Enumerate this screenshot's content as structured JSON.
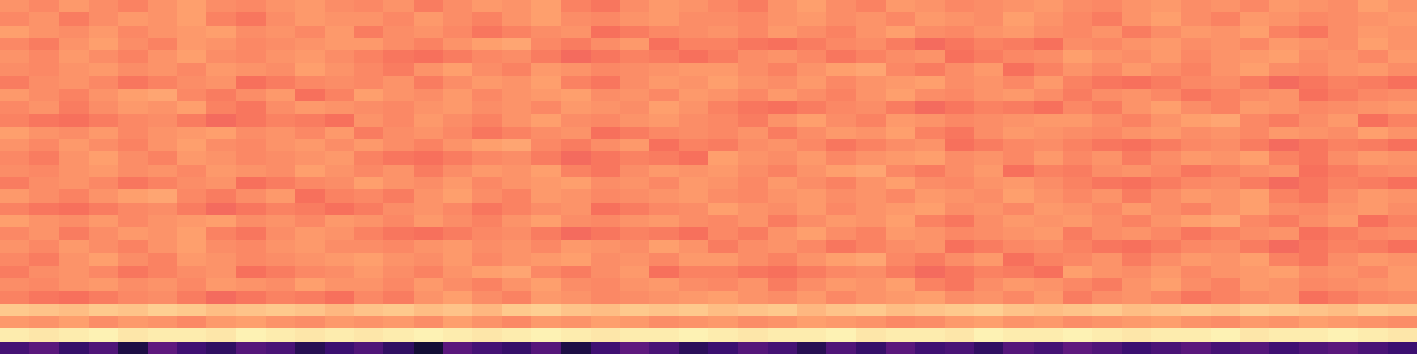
{
  "chart_data": {
    "type": "heatmap",
    "color": "magma",
    "tick_labels": false,
    "color_range": [
      -80,
      0
    ],
    "cells": [
      [
        -18,
        -20,
        -17,
        -19,
        -21,
        -18,
        -16,
        -19,
        -20,
        -18,
        -17,
        -19,
        -20,
        -18,
        -22,
        -19,
        -17,
        -18,
        -16,
        -21,
        -23,
        -19,
        -17,
        -18,
        -20,
        -22,
        -18,
        -16,
        -19,
        -21,
        -17,
        -18,
        -20,
        -19,
        -18,
        -17,
        -19,
        -20,
        -18,
        -17,
        -19,
        -18,
        -20,
        -17,
        -18,
        -19,
        -16,
        -18
      ],
      [
        -20,
        -18,
        -22,
        -19,
        -17,
        -18,
        -16,
        -21,
        -23,
        -19,
        -17,
        -18,
        -18,
        -20,
        -17,
        -19,
        -21,
        -18,
        -16,
        -19,
        -20,
        -18,
        -17,
        -19,
        -19,
        -20,
        -18,
        -17,
        -19,
        -18,
        -20,
        -17,
        -18,
        -19,
        -16,
        -18,
        -20,
        -22,
        -18,
        -16,
        -19,
        -21,
        -17,
        -18,
        -20,
        -19,
        -18,
        -17
      ],
      [
        -16,
        -18,
        -19,
        -17,
        -20,
        -18,
        -17,
        -16,
        -19,
        -18,
        -20,
        -17,
        -22,
        -19,
        -18,
        -20,
        -23,
        -21,
        -19,
        -18,
        -24,
        -22,
        -20,
        -19,
        -18,
        -20,
        -17,
        -19,
        -21,
        -18,
        -16,
        -19,
        -20,
        -18,
        -17,
        -19,
        -20,
        -18,
        -22,
        -19,
        -17,
        -18,
        -16,
        -21,
        -23,
        -19,
        -17,
        -18
      ],
      [
        -20,
        -22,
        -18,
        -16,
        -19,
        -21,
        -17,
        -18,
        -20,
        -19,
        -18,
        -17,
        -17,
        -19,
        -21,
        -18,
        -16,
        -15,
        -20,
        -22,
        -19,
        -17,
        -24,
        -21,
        -21,
        -23,
        -24,
        -22,
        -20,
        -19,
        -22,
        -25,
        -23,
        -21,
        -22,
        -24,
        -19,
        -20,
        -18,
        -17,
        -19,
        -18,
        -20,
        -17,
        -18,
        -19,
        -16,
        -18
      ],
      [
        -18,
        -20,
        -17,
        -19,
        -21,
        -18,
        -16,
        -19,
        -20,
        -18,
        -17,
        -19,
        -21,
        -23,
        -24,
        -22,
        -20,
        -19,
        -22,
        -25,
        -23,
        -21,
        -22,
        -24,
        -22,
        -19,
        -18,
        -20,
        -23,
        -21,
        -19,
        -18,
        -24,
        -22,
        -20,
        -19,
        -16,
        -18,
        -19,
        -17,
        -20,
        -18,
        -17,
        -16,
        -19,
        -18,
        -20,
        -17
      ],
      [
        -19,
        -20,
        -18,
        -17,
        -19,
        -18,
        -20,
        -17,
        -18,
        -19,
        -16,
        -18,
        -20,
        -22,
        -18,
        -16,
        -19,
        -21,
        -17,
        -18,
        -20,
        -19,
        -18,
        -17,
        -17,
        -19,
        -21,
        -18,
        -16,
        -15,
        -20,
        -22,
        -19,
        -17,
        -24,
        -21,
        -18,
        -20,
        -17,
        -19,
        -21,
        -18,
        -16,
        -19,
        -20,
        -18,
        -17,
        -19
      ],
      [
        -22,
        -19,
        -18,
        -20,
        -23,
        -21,
        -19,
        -18,
        -24,
        -22,
        -20,
        -19,
        -20,
        -18,
        -22,
        -19,
        -17,
        -18,
        -16,
        -21,
        -23,
        -19,
        -17,
        -18,
        -16,
        -18,
        -19,
        -17,
        -20,
        -18,
        -17,
        -16,
        -19,
        -18,
        -20,
        -17,
        -21,
        -23,
        -24,
        -22,
        -20,
        -19,
        -22,
        -25,
        -23,
        -21,
        -22,
        -24
      ],
      [
        -17,
        -19,
        -21,
        -18,
        -16,
        -15,
        -20,
        -22,
        -19,
        -17,
        -24,
        -21,
        -16,
        -18,
        -19,
        -17,
        -20,
        -18,
        -17,
        -16,
        -19,
        -18,
        -20,
        -17,
        -18,
        -20,
        -17,
        -19,
        -21,
        -18,
        -16,
        -19,
        -20,
        -18,
        -17,
        -19,
        -22,
        -19,
        -18,
        -20,
        -23,
        -21,
        -19,
        -18,
        -24,
        -22,
        -20,
        -19
      ],
      [
        -20,
        -18,
        -22,
        -19,
        -17,
        -18,
        -16,
        -21,
        -23,
        -19,
        -17,
        -18,
        -19,
        -20,
        -18,
        -17,
        -19,
        -18,
        -20,
        -17,
        -18,
        -19,
        -16,
        -18,
        -21,
        -23,
        -24,
        -22,
        -20,
        -19,
        -22,
        -25,
        -23,
        -21,
        -22,
        -24,
        -20,
        -22,
        -18,
        -16,
        -19,
        -21,
        -17,
        -18,
        -20,
        -19,
        -18,
        -17
      ],
      [
        -21,
        -23,
        -24,
        -22,
        -20,
        -19,
        -22,
        -25,
        -23,
        -21,
        -22,
        -24,
        -18,
        -20,
        -17,
        -19,
        -21,
        -18,
        -16,
        -19,
        -20,
        -18,
        -17,
        -19,
        -20,
        -22,
        -18,
        -16,
        -19,
        -21,
        -17,
        -18,
        -20,
        -19,
        -18,
        -17,
        -17,
        -19,
        -21,
        -18,
        -16,
        -15,
        -20,
        -22,
        -19,
        -17,
        -24,
        -21
      ],
      [
        -16,
        -18,
        -19,
        -17,
        -20,
        -18,
        -17,
        -16,
        -19,
        -18,
        -20,
        -17,
        -22,
        -19,
        -18,
        -20,
        -23,
        -21,
        -19,
        -18,
        -24,
        -22,
        -20,
        -19,
        -20,
        -18,
        -22,
        -19,
        -17,
        -18,
        -16,
        -21,
        -23,
        -19,
        -17,
        -18,
        -19,
        -20,
        -18,
        -17,
        -19,
        -18,
        -20,
        -17,
        -18,
        -19,
        -16,
        -18
      ],
      [
        -18,
        -20,
        -17,
        -19,
        -21,
        -18,
        -16,
        -19,
        -20,
        -18,
        -17,
        -19,
        -17,
        -19,
        -21,
        -18,
        -16,
        -15,
        -20,
        -22,
        -19,
        -17,
        -24,
        -21,
        -22,
        -19,
        -18,
        -20,
        -23,
        -21,
        -19,
        -18,
        -24,
        -22,
        -20,
        -19,
        -21,
        -23,
        -24,
        -22,
        -20,
        -19,
        -22,
        -25,
        -23,
        -21,
        -22,
        -24
      ],
      [
        -20,
        -22,
        -18,
        -16,
        -19,
        -21,
        -17,
        -18,
        -20,
        -19,
        -18,
        -17,
        -21,
        -23,
        -24,
        -22,
        -20,
        -19,
        -22,
        -25,
        -23,
        -21,
        -22,
        -24,
        -16,
        -18,
        -19,
        -17,
        -20,
        -18,
        -17,
        -16,
        -19,
        -18,
        -20,
        -17,
        -20,
        -18,
        -22,
        -19,
        -17,
        -18,
        -16,
        -21,
        -23,
        -19,
        -17,
        -18
      ],
      [
        -19,
        -20,
        -18,
        -17,
        -19,
        -18,
        -20,
        -17,
        -18,
        -19,
        -16,
        -18,
        -20,
        -18,
        -22,
        -19,
        -17,
        -18,
        -16,
        -21,
        -23,
        -19,
        -17,
        -18,
        -17,
        -19,
        -21,
        -18,
        -16,
        -15,
        -20,
        -22,
        -19,
        -17,
        -24,
        -21,
        -22,
        -19,
        -18,
        -20,
        -23,
        -21,
        -19,
        -18,
        -24,
        -22,
        -20,
        -19
      ],
      [
        -22,
        -19,
        -18,
        -20,
        -23,
        -21,
        -19,
        -18,
        -24,
        -22,
        -20,
        -19,
        -16,
        -18,
        -19,
        -17,
        -20,
        -18,
        -17,
        -16,
        -19,
        -18,
        -20,
        -17,
        -18,
        -20,
        -17,
        -19,
        -21,
        -18,
        -16,
        -19,
        -20,
        -18,
        -17,
        -19,
        -21,
        -23,
        -24,
        -22,
        -20,
        -19,
        -22,
        -25,
        -23,
        -21,
        -22,
        -24
      ],
      [
        -17,
        -19,
        -21,
        -18,
        -16,
        -15,
        -20,
        -22,
        -19,
        -17,
        -24,
        -21,
        -20,
        -22,
        -18,
        -16,
        -19,
        -21,
        -17,
        -18,
        -20,
        -19,
        -18,
        -17,
        -19,
        -20,
        -18,
        -17,
        -19,
        -18,
        -20,
        -17,
        -18,
        -19,
        -16,
        -18,
        -20,
        -18,
        -22,
        -19,
        -17,
        -18,
        -16,
        -21,
        -23,
        -19,
        -17,
        -18
      ],
      [
        -21,
        -23,
        -24,
        -22,
        -20,
        -19,
        -22,
        -25,
        -23,
        -21,
        -22,
        -24,
        -22,
        -19,
        -18,
        -20,
        -23,
        -21,
        -19,
        -18,
        -24,
        -22,
        -20,
        -19,
        -16,
        -18,
        -19,
        -17,
        -20,
        -18,
        -17,
        -16,
        -19,
        -18,
        -20,
        -17,
        -18,
        -20,
        -17,
        -19,
        -21,
        -18,
        -16,
        -19,
        -20,
        -18,
        -17,
        -19
      ],
      [
        -16,
        -18,
        -19,
        -17,
        -20,
        -18,
        -17,
        -16,
        -19,
        -18,
        -20,
        -17,
        -18,
        -20,
        -17,
        -19,
        -21,
        -18,
        -16,
        -19,
        -20,
        -18,
        -17,
        -19,
        -20,
        -18,
        -22,
        -19,
        -17,
        -18,
        -16,
        -21,
        -23,
        -19,
        -17,
        -18,
        -17,
        -19,
        -21,
        -18,
        -16,
        -15,
        -20,
        -22,
        -19,
        -17,
        -24,
        -21
      ],
      [
        -20,
        -18,
        -22,
        -19,
        -17,
        -18,
        -16,
        -21,
        -23,
        -19,
        -17,
        -18,
        -21,
        -23,
        -24,
        -22,
        -20,
        -19,
        -22,
        -25,
        -23,
        -21,
        -22,
        -24,
        -20,
        -22,
        -18,
        -16,
        -19,
        -21,
        -17,
        -18,
        -20,
        -19,
        -18,
        -17,
        -22,
        -19,
        -18,
        -20,
        -23,
        -21,
        -19,
        -18,
        -24,
        -22,
        -20,
        -19
      ],
      [
        -18,
        -20,
        -17,
        -19,
        -21,
        -18,
        -16,
        -19,
        -20,
        -18,
        -17,
        -19,
        -19,
        -20,
        -18,
        -17,
        -19,
        -18,
        -20,
        -17,
        -18,
        -19,
        -16,
        -18,
        -22,
        -19,
        -18,
        -20,
        -23,
        -21,
        -19,
        -18,
        -24,
        -22,
        -20,
        -19,
        -21,
        -23,
        -24,
        -22,
        -20,
        -19,
        -22,
        -25,
        -23,
        -21,
        -22,
        -24
      ],
      [
        -20,
        -22,
        -18,
        -16,
        -19,
        -21,
        -17,
        -18,
        -20,
        -19,
        -18,
        -17,
        -16,
        -18,
        -19,
        -17,
        -20,
        -18,
        -17,
        -16,
        -19,
        -18,
        -20,
        -17,
        -17,
        -19,
        -21,
        -18,
        -16,
        -15,
        -20,
        -22,
        -19,
        -17,
        -24,
        -21,
        -20,
        -18,
        -22,
        -19,
        -17,
        -18,
        -16,
        -21,
        -23,
        -19,
        -17,
        -18
      ],
      [
        -22,
        -19,
        -18,
        -20,
        -23,
        -21,
        -19,
        -18,
        -24,
        -22,
        -20,
        -19,
        -17,
        -19,
        -21,
        -18,
        -16,
        -15,
        -20,
        -22,
        -19,
        -17,
        -24,
        -21,
        -21,
        -23,
        -24,
        -22,
        -20,
        -19,
        -22,
        -25,
        -23,
        -21,
        -22,
        -24,
        -16,
        -18,
        -19,
        -17,
        -20,
        -18,
        -17,
        -16,
        -19,
        -18,
        -20,
        -17
      ],
      [
        -19,
        -20,
        -18,
        -17,
        -19,
        -18,
        -20,
        -17,
        -18,
        -19,
        -16,
        -18,
        -18,
        -20,
        -17,
        -19,
        -21,
        -18,
        -16,
        -19,
        -20,
        -18,
        -17,
        -19,
        -20,
        -18,
        -22,
        -19,
        -17,
        -18,
        -16,
        -21,
        -23,
        -19,
        -17,
        -18,
        -20,
        -22,
        -18,
        -16,
        -19,
        -21,
        -17,
        -18,
        -20,
        -19,
        -18,
        -17
      ],
      [
        -21,
        -23,
        -24,
        -22,
        -20,
        -19,
        -22,
        -25,
        -23,
        -21,
        -22,
        -24,
        -20,
        -22,
        -18,
        -16,
        -19,
        -21,
        -17,
        -18,
        -20,
        -19,
        -18,
        -17,
        -16,
        -18,
        -19,
        -17,
        -20,
        -18,
        -17,
        -16,
        -19,
        -18,
        -20,
        -17,
        -22,
        -19,
        -18,
        -20,
        -23,
        -21,
        -19,
        -18,
        -24,
        -22,
        -20,
        -19
      ],
      [
        -9,
        -10,
        -11,
        -9,
        -10,
        -8,
        -9,
        -11,
        -10,
        -9,
        -10,
        -12,
        -10,
        -9,
        -11,
        -10,
        -12,
        -9,
        -8,
        -10,
        -11,
        -9,
        -10,
        -9,
        -11,
        -10,
        -9,
        -12,
        -10,
        -9,
        -11,
        -10,
        -9,
        -8,
        -10,
        -11,
        -10,
        -9,
        -11,
        -10,
        -9,
        -10,
        -8,
        -9,
        -10,
        -11,
        -9,
        -10
      ],
      [
        -17,
        -18,
        -16,
        -19,
        -17,
        -18,
        -20,
        -17,
        -16,
        -18,
        -19,
        -17,
        -18,
        -17,
        -19,
        -16,
        -18,
        -20,
        -17,
        -18,
        -16,
        -17,
        -19,
        -18,
        -17,
        -19,
        -18,
        -16,
        -17,
        -18,
        -20,
        -19,
        -17,
        -16,
        -18,
        -17,
        -19,
        -18,
        -17,
        -16,
        -18,
        -19,
        -17,
        -18,
        -16,
        -17,
        -18,
        -19
      ],
      [
        -3,
        -4,
        -3,
        -2,
        -4,
        -3,
        -3,
        -4,
        -2,
        -3,
        -4,
        -3,
        -4,
        -3,
        -2,
        -3,
        -4,
        -3,
        -2,
        -3,
        -4,
        -3,
        -3,
        -2,
        -3,
        -4,
        -3,
        -3,
        -2,
        -4,
        -3,
        -3,
        -4,
        -2,
        -3,
        -3,
        -2,
        -3,
        -4,
        -3,
        -3,
        -2,
        -4,
        -3,
        -3,
        -2,
        -3,
        -4
      ],
      [
        -62,
        -58,
        -65,
        -60,
        -70,
        -57,
        -63,
        -66,
        -59,
        -61,
        -68,
        -64,
        -60,
        -66,
        -72,
        -58,
        -62,
        -65,
        -59,
        -70,
        -63,
        -57,
        -61,
        -67,
        -64,
        -59,
        -62,
        -68,
        -60,
        -65,
        -58,
        -63,
        -61,
        -66,
        -59,
        -62,
        -57,
        -60,
        -64,
        -61,
        -58,
        -62,
        -59,
        -63,
        -60,
        -58,
        -61,
        -64
      ]
    ]
  }
}
